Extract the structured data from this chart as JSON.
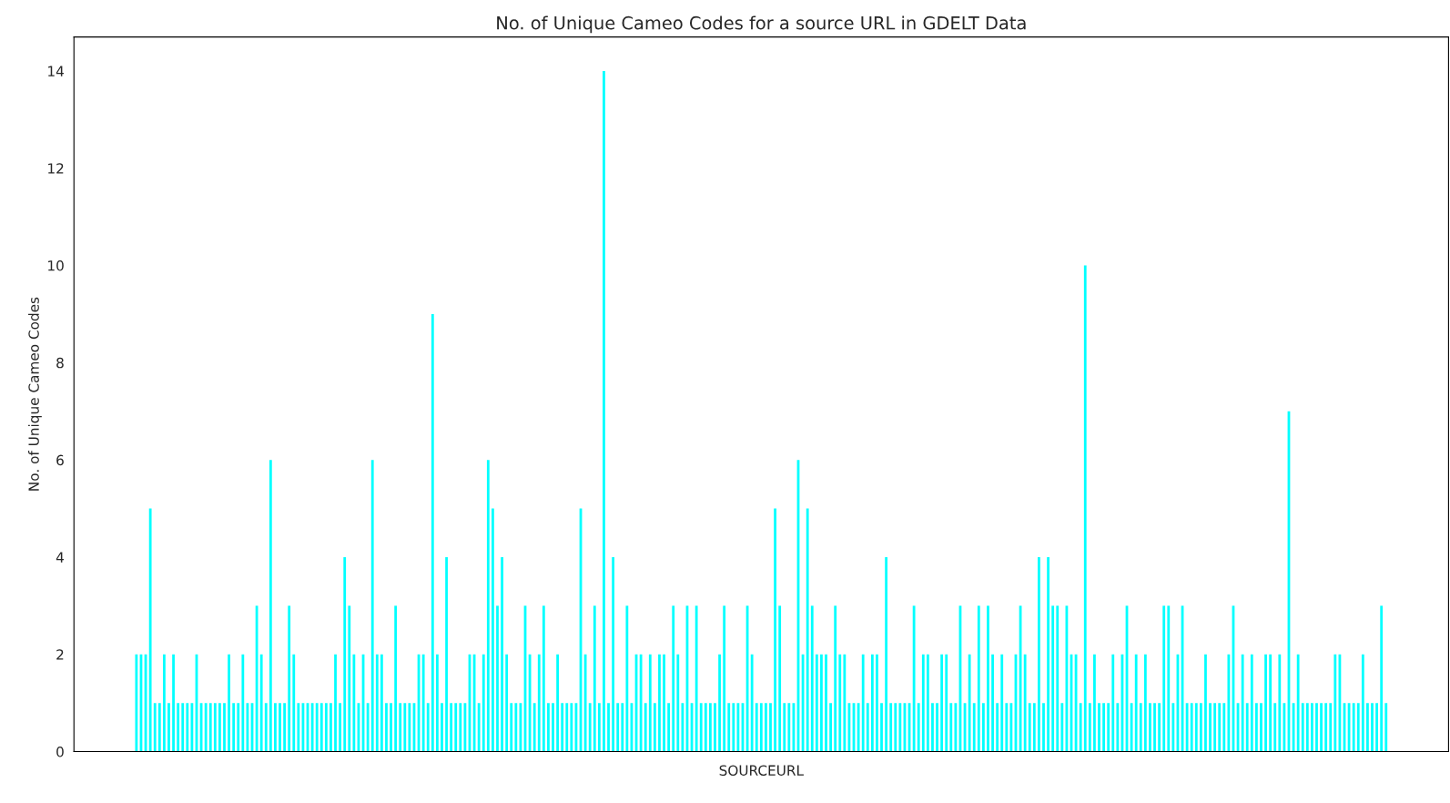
{
  "chart_data": {
    "type": "bar",
    "title": "No. of Unique Cameo Codes for a source URL in GDELT Data",
    "xlabel": "SOURCEURL",
    "ylabel": "No. of Unique Cameo Codes",
    "categories": [
      null,
      null,
      null,
      null,
      null,
      null,
      null,
      null,
      null,
      null,
      null,
      null,
      null,
      null,
      null,
      null,
      null,
      null,
      null,
      null,
      null,
      null,
      null,
      null,
      null,
      null,
      null,
      null,
      null,
      null,
      null,
      null,
      null,
      null,
      null,
      null,
      null,
      null,
      null,
      null,
      null,
      null,
      null,
      null,
      null,
      null,
      null,
      null,
      null,
      null,
      null,
      null,
      null,
      null,
      null,
      null,
      null,
      null,
      null,
      null,
      null,
      null,
      null,
      null,
      null,
      null,
      null,
      null,
      null,
      null,
      null,
      null,
      null,
      null,
      null,
      null,
      null,
      null,
      null,
      null,
      null,
      null,
      null,
      null,
      null,
      null,
      null,
      null,
      null,
      null,
      null,
      null,
      null,
      null,
      null,
      null,
      null,
      null,
      null,
      null,
      null,
      null,
      null,
      null,
      null,
      null,
      null,
      null,
      null,
      null,
      null,
      null,
      null,
      null,
      null,
      null,
      null,
      null,
      null,
      null,
      null,
      null,
      null,
      null,
      null,
      null,
      null,
      null,
      null,
      null,
      null,
      null,
      null,
      null,
      null,
      null,
      null,
      null,
      null,
      null,
      null,
      null,
      null,
      null,
      null,
      null,
      null,
      null,
      null,
      null,
      null,
      null,
      null,
      null,
      null,
      null,
      null,
      null,
      null,
      null,
      null,
      null,
      null,
      null,
      null,
      null,
      null,
      null,
      null,
      null,
      null,
      null,
      null,
      null,
      null,
      null,
      null,
      null,
      null,
      null,
      null,
      null,
      null,
      null,
      null,
      null,
      null,
      null,
      null,
      null,
      null,
      null,
      null,
      null,
      null,
      null,
      null,
      null,
      null,
      null,
      null,
      null,
      null,
      null,
      null,
      null,
      null,
      null,
      null,
      null,
      null,
      null,
      null,
      null,
      null,
      null,
      null,
      null,
      null,
      null,
      null,
      null,
      null,
      null,
      null,
      null,
      null,
      null,
      null,
      null,
      null,
      null,
      null,
      null,
      null,
      null,
      null,
      null,
      null,
      null,
      null,
      null,
      null,
      null,
      null,
      null,
      null,
      null,
      null,
      null,
      null,
      null,
      null,
      null,
      null,
      null,
      null,
      null,
      null,
      null,
      null,
      null,
      null,
      null,
      null,
      null,
      null,
      null,
      null,
      null,
      null
    ],
    "values": [
      2,
      2,
      2,
      5,
      1,
      1,
      2,
      1,
      2,
      1,
      1,
      1,
      1,
      2,
      1,
      1,
      1,
      1,
      1,
      1,
      2,
      1,
      1,
      2,
      1,
      1,
      3,
      2,
      1,
      6,
      1,
      1,
      1,
      3,
      2,
      1,
      1,
      1,
      1,
      1,
      1,
      1,
      1,
      2,
      1,
      4,
      3,
      2,
      1,
      2,
      1,
      6,
      2,
      2,
      1,
      1,
      3,
      1,
      1,
      1,
      1,
      2,
      2,
      1,
      9,
      2,
      1,
      4,
      1,
      1,
      1,
      1,
      2,
      2,
      1,
      2,
      6,
      5,
      3,
      4,
      2,
      1,
      1,
      1,
      3,
      2,
      1,
      2,
      3,
      1,
      1,
      2,
      1,
      1,
      1,
      1,
      5,
      2,
      1,
      3,
      1,
      14,
      1,
      4,
      1,
      1,
      3,
      1,
      2,
      2,
      1,
      2,
      1,
      2,
      2,
      1,
      3,
      2,
      1,
      3,
      1,
      3,
      1,
      1,
      1,
      1,
      2,
      3,
      1,
      1,
      1,
      1,
      3,
      2,
      1,
      1,
      1,
      1,
      5,
      3,
      1,
      1,
      1,
      6,
      2,
      5,
      3,
      2,
      2,
      2,
      1,
      3,
      2,
      2,
      1,
      1,
      1,
      2,
      1,
      2,
      2,
      1,
      4,
      1,
      1,
      1,
      1,
      1,
      3,
      1,
      2,
      2,
      1,
      1,
      2,
      2,
      1,
      1,
      3,
      1,
      2,
      1,
      3,
      1,
      3,
      2,
      1,
      2,
      1,
      1,
      2,
      3,
      2,
      1,
      1,
      4,
      1,
      4,
      3,
      3,
      1,
      3,
      2,
      2,
      1,
      10,
      1,
      2,
      1,
      1,
      1,
      2,
      1,
      2,
      3,
      1,
      2,
      1,
      2,
      1,
      1,
      1,
      3,
      3,
      1,
      2,
      3,
      1,
      1,
      1,
      1,
      2,
      1,
      1,
      1,
      1,
      2,
      3,
      1,
      2,
      1,
      2,
      1,
      1,
      2,
      2,
      1,
      2,
      1,
      7,
      1,
      2,
      1,
      1,
      1,
      1,
      1,
      1,
      1,
      2,
      2,
      1,
      1,
      1,
      1,
      2,
      1,
      1,
      1,
      3,
      1
    ],
    "color": "#00ffff",
    "ylim": [
      0,
      14.7
    ],
    "yticks": [
      0,
      2,
      4,
      6,
      8,
      10,
      12,
      14
    ],
    "tick_labels": "y",
    "grid": false,
    "legend": false
  }
}
